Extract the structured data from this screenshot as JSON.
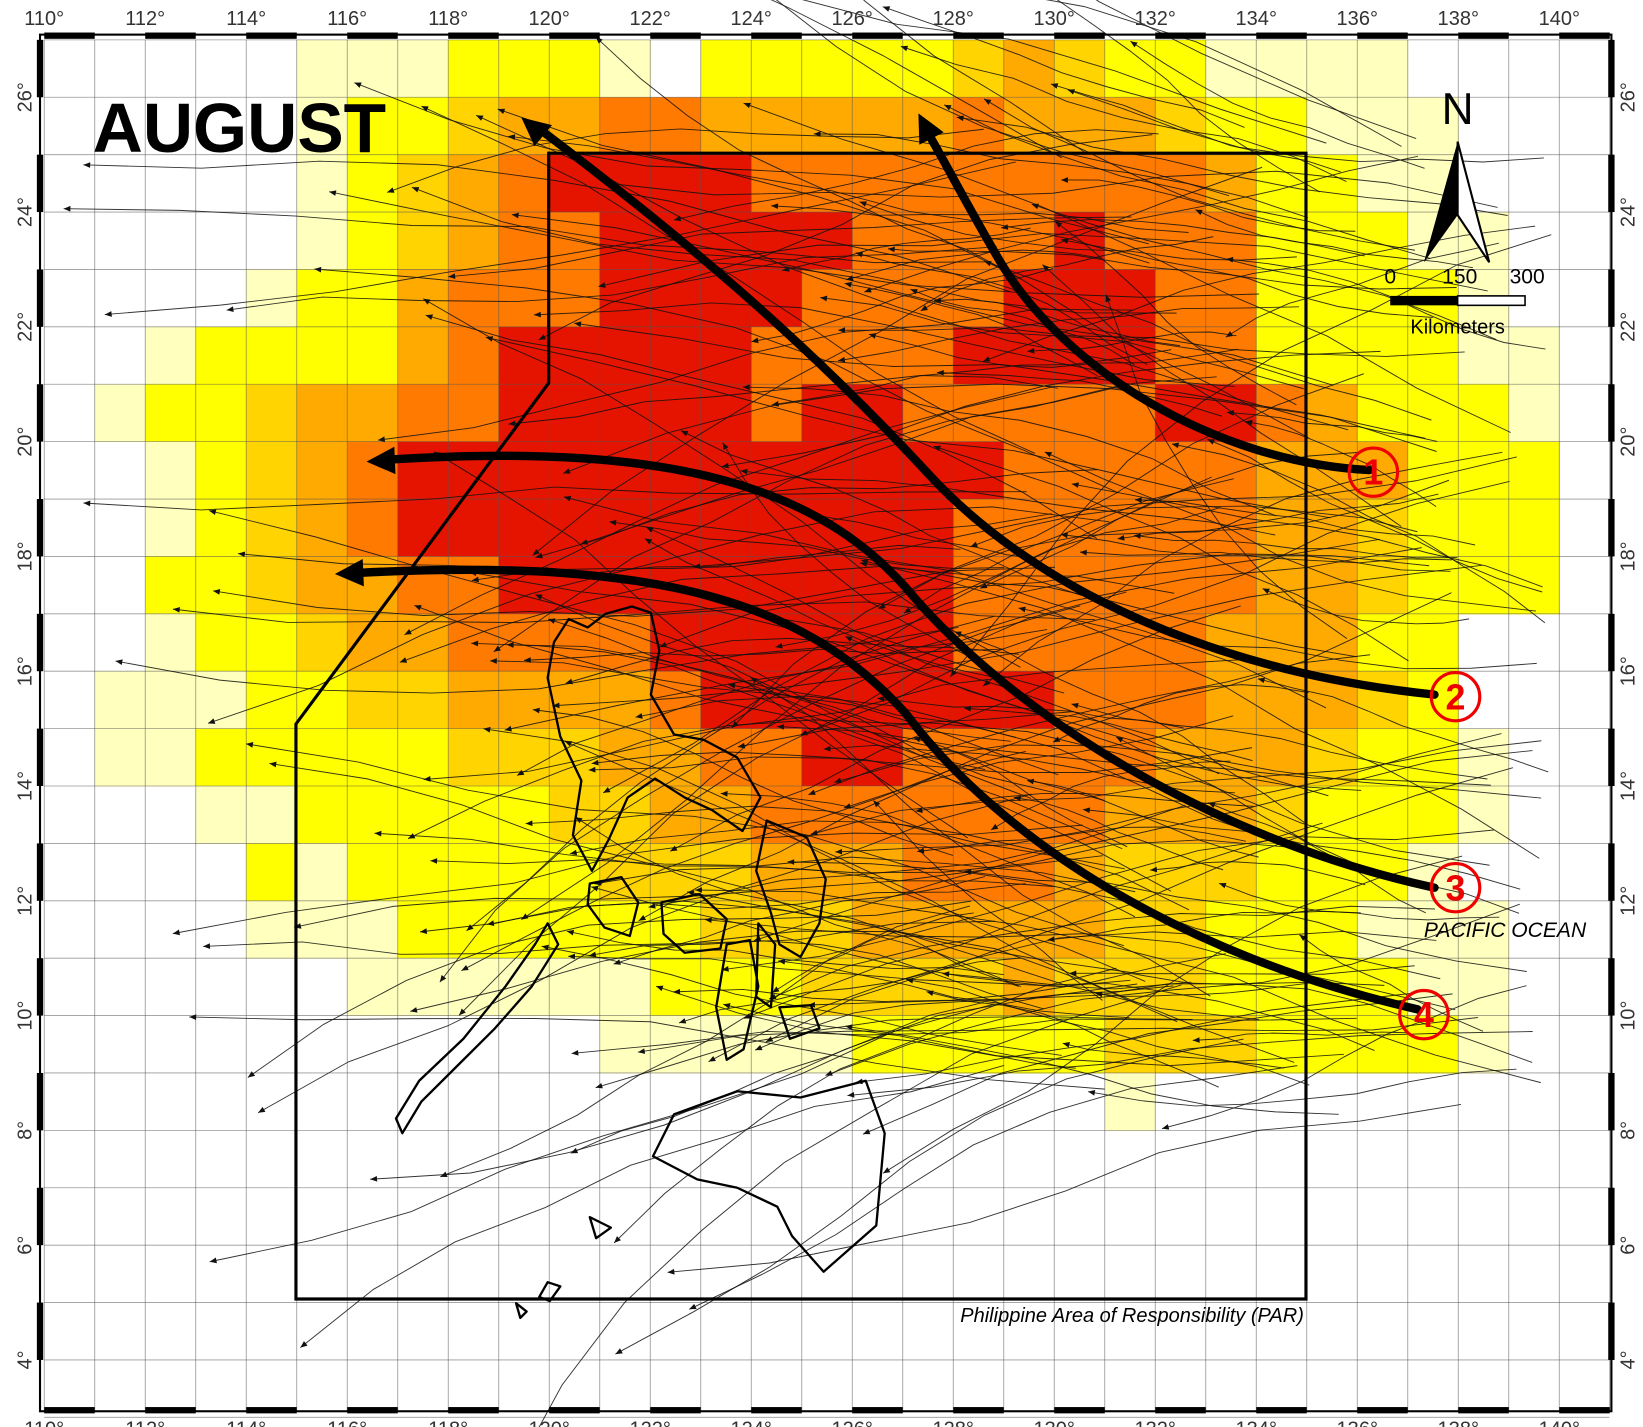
{
  "title": "AUGUST",
  "longitude_labels": [
    "110°",
    "112°",
    "114°",
    "116°",
    "118°",
    "120°",
    "122°",
    "124°",
    "126°",
    "128°",
    "130°",
    "132°",
    "134°",
    "136°",
    "138°",
    "140°"
  ],
  "latitude_labels": [
    "26°",
    "24°",
    "22°",
    "20°",
    "18°",
    "16°",
    "14°",
    "12°",
    "10°",
    "8°",
    "6°",
    "4°"
  ],
  "north_arrow": "N",
  "scale_bar": {
    "ticks": [
      "0",
      "150",
      "300"
    ],
    "unit": "Kilometers"
  },
  "labels": {
    "ocean": "PACIFIC OCEAN",
    "par": "Philippine Area of Responsibility (PAR)"
  },
  "tracks": [
    "1",
    "2",
    "3",
    "4"
  ]
}
